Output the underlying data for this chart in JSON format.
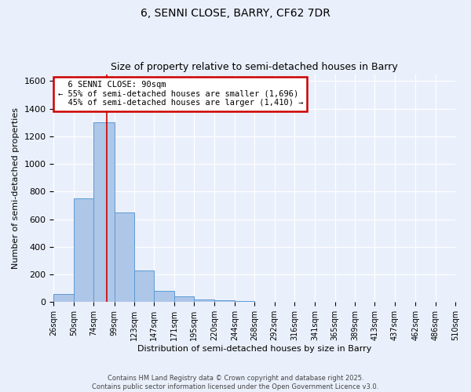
{
  "title": "6, SENNI CLOSE, BARRY, CF62 7DR",
  "subtitle": "Size of property relative to semi-detached houses in Barry",
  "xlabel": "Distribution of semi-detached houses by size in Barry",
  "ylabel": "Number of semi-detached properties",
  "bin_labels": [
    "26sqm",
    "50sqm",
    "74sqm",
    "99sqm",
    "123sqm",
    "147sqm",
    "171sqm",
    "195sqm",
    "220sqm",
    "244sqm",
    "268sqm",
    "292sqm",
    "316sqm",
    "341sqm",
    "365sqm",
    "389sqm",
    "413sqm",
    "437sqm",
    "462sqm",
    "486sqm",
    "510sqm"
  ],
  "bin_edges": [
    26,
    50,
    74,
    99,
    123,
    147,
    171,
    195,
    220,
    244,
    268,
    292,
    316,
    341,
    365,
    389,
    413,
    437,
    462,
    486,
    510
  ],
  "bar_heights": [
    60,
    750,
    1300,
    650,
    230,
    80,
    40,
    20,
    15,
    5,
    0,
    0,
    0,
    0,
    0,
    0,
    0,
    0,
    0,
    0
  ],
  "bar_color": "#aec6e8",
  "bar_edge_color": "#5b9bd5",
  "property_size": 90,
  "property_label": "6 SENNI CLOSE: 90sqm",
  "pct_smaller": 55,
  "pct_larger": 45,
  "n_smaller": 1696,
  "n_larger": 1410,
  "vline_color": "#cc0000",
  "annotation_box_color": "#cc0000",
  "ylim": [
    0,
    1650
  ],
  "yticks": [
    0,
    200,
    400,
    600,
    800,
    1000,
    1200,
    1400,
    1600
  ],
  "bg_color": "#eaf0fb",
  "grid_color": "#ffffff",
  "footer_line1": "Contains HM Land Registry data © Crown copyright and database right 2025.",
  "footer_line2": "Contains public sector information licensed under the Open Government Licence v3.0."
}
